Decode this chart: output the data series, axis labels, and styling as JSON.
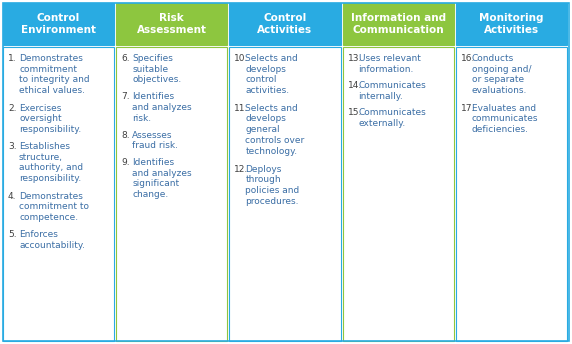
{
  "columns": [
    {
      "title": "Control\nEnvironment",
      "header_color": "#29ABE2",
      "border_color": "#29ABE2",
      "items": [
        {
          "num": "1.",
          "text": "Demonstrates\ncommitment\nto integrity and\nethical values."
        },
        {
          "num": "2.",
          "text": "Exercises\noversight\nresponsibility."
        },
        {
          "num": "3.",
          "text": "Establishes\nstructure,\nauthority, and\nresponsibility."
        },
        {
          "num": "4.",
          "text": "Demonstrates\ncommitment to\ncompetence."
        },
        {
          "num": "5.",
          "text": "Enforces\naccountability."
        }
      ]
    },
    {
      "title": "Risk\nAssessment",
      "header_color": "#8DC63F",
      "border_color": "#8DC63F",
      "items": [
        {
          "num": "6.",
          "text": "Specifies\nsuitable\nobjectives."
        },
        {
          "num": "7.",
          "text": "Identifies\nand analyzes\nrisk."
        },
        {
          "num": "8.",
          "text": "Assesses\nfraud risk."
        },
        {
          "num": "9.",
          "text": "Identifies\nand analyzes\nsignificant\nchange."
        }
      ]
    },
    {
      "title": "Control\nActivities",
      "header_color": "#29ABE2",
      "border_color": "#29ABE2",
      "items": [
        {
          "num": "10.",
          "text": "Selects and\ndevelops\ncontrol\nactivities."
        },
        {
          "num": "11.",
          "text": "Selects and\ndevelops\ngeneral\ncontrols over\ntechnology."
        },
        {
          "num": "12.",
          "text": "Deploys\nthrough\npolicies and\nprocedures."
        }
      ]
    },
    {
      "title": "Information and\nCommunication",
      "header_color": "#8DC63F",
      "border_color": "#8DC63F",
      "items": [
        {
          "num": "13.",
          "text": "Uses relevant\ninformation."
        },
        {
          "num": "14.",
          "text": "Communicates\ninternally."
        },
        {
          "num": "15.",
          "text": "Communicates\nexternally."
        }
      ]
    },
    {
      "title": "Monitoring\nActivities",
      "header_color": "#29ABE2",
      "border_color": "#29ABE2",
      "items": [
        {
          "num": "16.",
          "text": "Conducts\nongoing and/\nor separate\nevaluations."
        },
        {
          "num": "17.",
          "text": "Evaluates and\ncommunicates\ndeficiencies."
        }
      ]
    }
  ],
  "header_text_color": "#FFFFFF",
  "body_text_color": "#404040",
  "item_text_color": "#3B6EA5",
  "background_color": "#FFFFFF",
  "outer_border_color": "#29ABE2",
  "body_bg_color": "#FFFFFF",
  "fig_width": 5.72,
  "fig_height": 3.44,
  "dpi": 100
}
